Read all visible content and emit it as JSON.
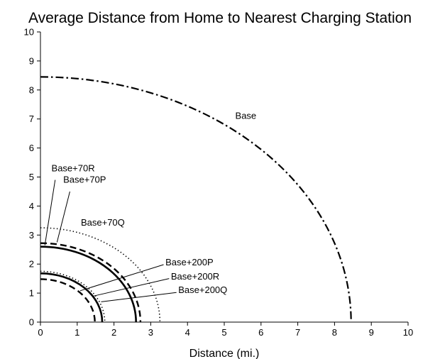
{
  "chart_data": {
    "type": "line",
    "title": "Average Distance from Home to Nearest Charging Station",
    "xlabel": "Distance (mi.)",
    "ylabel": "",
    "xlim": [
      0,
      10
    ],
    "ylim": [
      0,
      10
    ],
    "x_ticks": [
      "0",
      "1",
      "2",
      "3",
      "4",
      "5",
      "6",
      "7",
      "8",
      "9",
      "10"
    ],
    "y_ticks": [
      "0",
      "1",
      "2",
      "3",
      "4",
      "5",
      "6",
      "7",
      "8",
      "9",
      "10"
    ],
    "grid": false,
    "legend": "none",
    "series": [
      {
        "name": "Base",
        "radius": 8.45,
        "line_style": "dash-dot",
        "color": "#000000"
      },
      {
        "name": "Base+70Q",
        "radius": 3.25,
        "line_style": "dotted",
        "color": "#000000"
      },
      {
        "name": "Base+70P",
        "radius": 2.72,
        "line_style": "dashed",
        "color": "#000000"
      },
      {
        "name": "Base+70R",
        "radius": 2.6,
        "line_style": "solid",
        "color": "#000000"
      },
      {
        "name": "Base+200Q",
        "radius": 1.75,
        "line_style": "dotted",
        "color": "#000000"
      },
      {
        "name": "Base+200R",
        "radius": 1.68,
        "line_style": "solid",
        "color": "#000000"
      },
      {
        "name": "Base+200P",
        "radius": 1.48,
        "line_style": "dashed",
        "color": "#000000"
      }
    ],
    "annotations": [
      {
        "text": "Base",
        "series": "Base",
        "x": 5.3,
        "y": 7.0
      },
      {
        "text": "Base+70Q",
        "series": "Base+70Q",
        "x": 1.1,
        "y": 3.33
      },
      {
        "text": "Base+70R",
        "series": "Base+70R",
        "x": 0.3,
        "y": 5.2
      },
      {
        "text": "Base+70P",
        "series": "Base+70P",
        "x": 0.62,
        "y": 4.8
      },
      {
        "text": "Base+200P",
        "series": "Base+200P",
        "x": 3.4,
        "y": 1.95
      },
      {
        "text": "Base+200R",
        "series": "Base+200R",
        "x": 3.55,
        "y": 1.47
      },
      {
        "text": "Base+200Q",
        "series": "Base+200Q",
        "x": 3.75,
        "y": 1.0
      }
    ],
    "leaders": [
      {
        "series": "Base+70R",
        "from": [
          0.4,
          4.9
        ],
        "to": [
          0.12,
          2.65
        ]
      },
      {
        "series": "Base+70P",
        "from": [
          0.8,
          4.5
        ],
        "to": [
          0.45,
          2.75
        ]
      },
      {
        "series": "Base+200P",
        "from": [
          3.35,
          1.98
        ],
        "to": [
          1.08,
          1.08
        ]
      },
      {
        "series": "Base+200R",
        "from": [
          3.5,
          1.5
        ],
        "to": [
          1.45,
          0.9
        ]
      },
      {
        "series": "Base+200Q",
        "from": [
          3.7,
          1.02
        ],
        "to": [
          1.65,
          0.7
        ]
      }
    ]
  }
}
